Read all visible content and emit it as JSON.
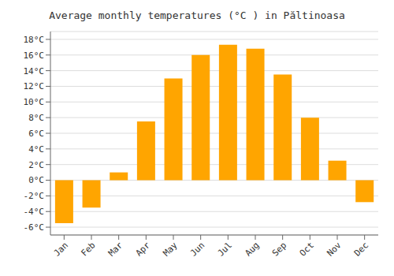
{
  "chart_data": {
    "type": "bar",
    "title": "Average monthly temperatures (°C ) in Păltinoasa",
    "categories": [
      "Jan",
      "Feb",
      "Mar",
      "Apr",
      "May",
      "Jun",
      "Jul",
      "Aug",
      "Sep",
      "Oct",
      "Nov",
      "Dec"
    ],
    "values": [
      -5.5,
      -3.5,
      1.0,
      7.5,
      13.0,
      16.0,
      17.3,
      16.8,
      13.5,
      8.0,
      2.5,
      -2.8
    ],
    "color": "#FFA500",
    "ylim": [
      -7,
      19
    ],
    "yticks": [
      {
        "value": -6,
        "label": "-6°C"
      },
      {
        "value": -4,
        "label": "-4°C"
      },
      {
        "value": -2,
        "label": "-2°C"
      },
      {
        "value": 0,
        "label": "0°C"
      },
      {
        "value": 2,
        "label": "2°C"
      },
      {
        "value": 4,
        "label": "4°C"
      },
      {
        "value": 6,
        "label": "6°C"
      },
      {
        "value": 8,
        "label": "8°C"
      },
      {
        "value": 10,
        "label": "10°C"
      },
      {
        "value": 12,
        "label": "12°C"
      },
      {
        "value": 14,
        "label": "14°C"
      },
      {
        "value": 16,
        "label": "16°C"
      },
      {
        "value": 18,
        "label": "18°C"
      }
    ],
    "grid": true
  }
}
